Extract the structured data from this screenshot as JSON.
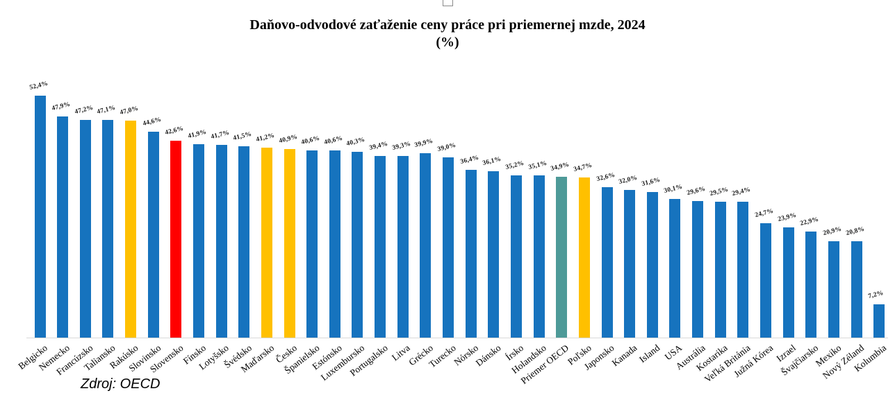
{
  "title": {
    "line1": "Daňovo-odvodové zaťaženie ceny práce pri priemernej mzde, 2024",
    "line2": "(%)"
  },
  "source": {
    "text": "Zdroj: OECD"
  },
  "palette": {
    "bar_default": "#1673BE",
    "bar_highlight": "#FFC000",
    "bar_slovakia": "#FF0000",
    "bar_oecd_average": "#4E9A98",
    "axis_line": "#D9D9D9",
    "value_label": "#1A1A1A",
    "axis_label": "#000000"
  },
  "chart_data": {
    "type": "bar",
    "title": "Daňovo-odvodové zaťaženie ceny práce pri priemernej mzde, 2024 (%)",
    "xlabel": "",
    "ylabel": "%",
    "ylim": [
      0,
      55
    ],
    "grid": false,
    "legend": "none",
    "value_labels_shown": true,
    "value_label_format": "decimal-comma, one decimal, percent suffix",
    "categories": [
      "Belgicko",
      "Nemecko",
      "Francúzsko",
      "Taliansko",
      "Rakúsko",
      "Slovinsko",
      "Slovensko",
      "Fínsko",
      "Lotyšsko",
      "Švédsko",
      "Maďarsko",
      "Česko",
      "Španielsko",
      "Estónsko",
      "Luxembursko",
      "Portugalsko",
      "Litva",
      "Grécko",
      "Turecko",
      "Nórsko",
      "Dánsko",
      "Írsko",
      "Holandsko",
      "Priemer OECD",
      "Poľsko",
      "Japonsko",
      "Kanada",
      "Island",
      "USA",
      "Austrália",
      "Kostarika",
      "Veľká Británia",
      "Južná Kórea",
      "Izrael",
      "Švajčiarsko",
      "Mexiko",
      "Nový Zéland",
      "Kolumbia"
    ],
    "values": [
      52.4,
      47.9,
      47.2,
      47.1,
      47.0,
      44.6,
      42.6,
      41.9,
      41.7,
      41.5,
      41.2,
      40.9,
      40.6,
      40.6,
      40.3,
      39.4,
      39.3,
      39.9,
      39.0,
      36.4,
      36.1,
      35.2,
      35.1,
      34.9,
      34.7,
      32.6,
      32.0,
      31.6,
      30.1,
      29.6,
      29.5,
      29.4,
      24.7,
      23.9,
      22.9,
      20.9,
      20.8,
      7.2
    ],
    "bar_color_roles": [
      "default",
      "default",
      "default",
      "default",
      "highlight",
      "default",
      "slovakia",
      "default",
      "default",
      "default",
      "highlight",
      "highlight",
      "default",
      "default",
      "default",
      "default",
      "default",
      "default",
      "default",
      "default",
      "default",
      "default",
      "default",
      "oecd_average",
      "highlight",
      "default",
      "default",
      "default",
      "default",
      "default",
      "default",
      "default",
      "default",
      "default",
      "default",
      "default",
      "default",
      "default"
    ]
  }
}
